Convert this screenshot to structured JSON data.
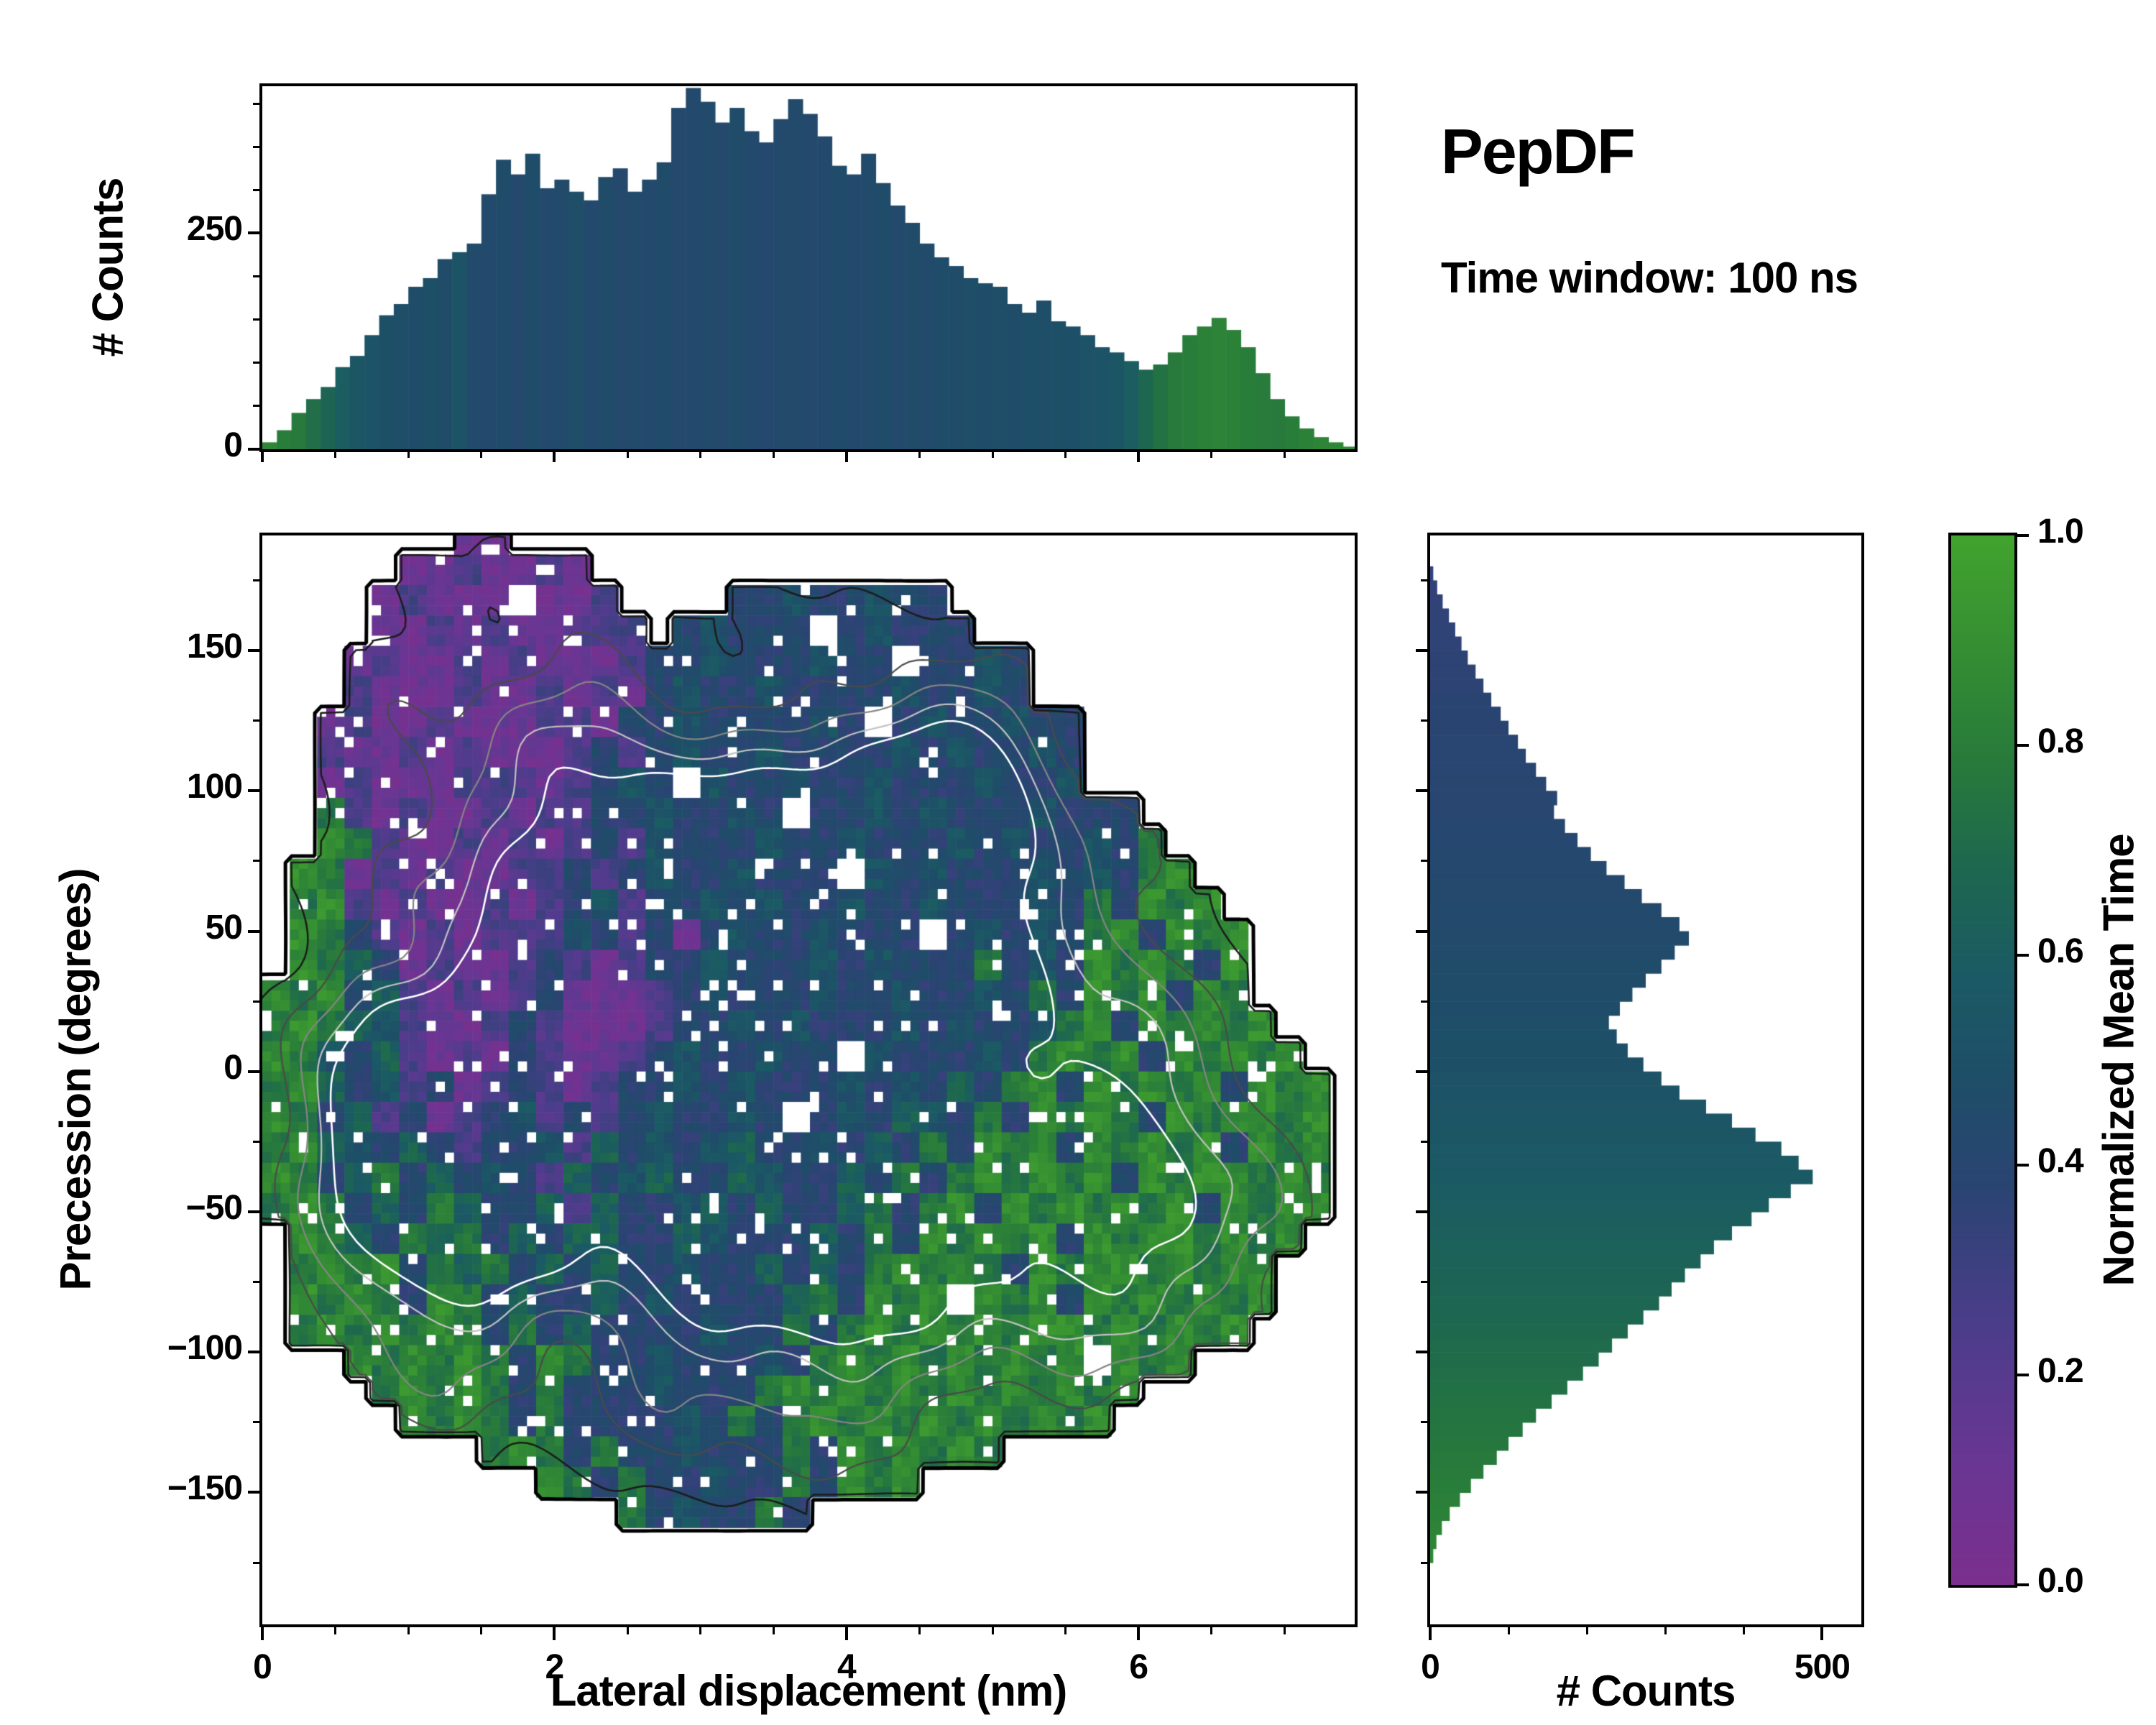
{
  "header": {
    "title": "PepDF",
    "subtitle": "Time window: 100 ns"
  },
  "colors": {
    "background": "#ffffff",
    "axis": "#000000",
    "colormap_stops": [
      [
        0.0,
        "#7b2f8e"
      ],
      [
        0.12,
        "#693693"
      ],
      [
        0.25,
        "#4b3d8a"
      ],
      [
        0.38,
        "#2a4472"
      ],
      [
        0.48,
        "#1e4e68"
      ],
      [
        0.58,
        "#1b5a64"
      ],
      [
        0.68,
        "#1d6750"
      ],
      [
        0.78,
        "#27793c"
      ],
      [
        0.88,
        "#338c33"
      ],
      [
        1.0,
        "#42a32e"
      ]
    ]
  },
  "colorbar": {
    "label": "Normalized Mean Time",
    "ticks": [
      {
        "v": 1.0,
        "label": "1.0"
      },
      {
        "v": 0.8,
        "label": "0.8"
      },
      {
        "v": 0.6,
        "label": "0.6"
      },
      {
        "v": 0.4,
        "label": "0.4"
      },
      {
        "v": 0.2,
        "label": "0.2"
      },
      {
        "v": 0.0,
        "label": "0.0"
      }
    ]
  },
  "chart_data": [
    {
      "id": "top_histogram",
      "type": "bar",
      "ylabel": "# Counts",
      "xlim": [
        0,
        7.48
      ],
      "ylim": [
        0,
        420
      ],
      "y_ticks": [
        {
          "v": 0,
          "label": "0"
        },
        {
          "v": 250,
          "label": "250"
        }
      ],
      "bin_start": 0,
      "bin_width": 0.1,
      "values": [
        8,
        22,
        42,
        58,
        72,
        95,
        108,
        132,
        155,
        168,
        188,
        198,
        220,
        228,
        238,
        295,
        335,
        318,
        342,
        302,
        312,
        298,
        288,
        315,
        325,
        298,
        312,
        332,
        395,
        418,
        402,
        378,
        395,
        368,
        355,
        382,
        405,
        388,
        362,
        328,
        318,
        342,
        308,
        282,
        262,
        238,
        222,
        212,
        198,
        192,
        188,
        168,
        158,
        172,
        148,
        142,
        132,
        118,
        112,
        102,
        92,
        98,
        112,
        132,
        142,
        152,
        138,
        118,
        88,
        58,
        38,
        24,
        14,
        8,
        3
      ],
      "mean_time": [
        0.85,
        0.8,
        0.78,
        0.72,
        0.66,
        0.6,
        0.55,
        0.52,
        0.5,
        0.48,
        0.47,
        0.5,
        0.46,
        0.52,
        0.45,
        0.44,
        0.46,
        0.43,
        0.47,
        0.44,
        0.45,
        0.48,
        0.44,
        0.46,
        0.43,
        0.45,
        0.44,
        0.46,
        0.43,
        0.44,
        0.45,
        0.43,
        0.46,
        0.44,
        0.42,
        0.44,
        0.45,
        0.43,
        0.44,
        0.46,
        0.44,
        0.45,
        0.47,
        0.44,
        0.46,
        0.45,
        0.47,
        0.46,
        0.48,
        0.47,
        0.48,
        0.47,
        0.49,
        0.48,
        0.5,
        0.49,
        0.51,
        0.52,
        0.55,
        0.6,
        0.68,
        0.74,
        0.78,
        0.8,
        0.82,
        0.83,
        0.82,
        0.8,
        0.79,
        0.78,
        0.8,
        0.82,
        0.84,
        0.85,
        0.86
      ]
    },
    {
      "id": "joint_density",
      "type": "heatmap",
      "xlabel": "Lateral displacement (nm)",
      "ylabel": "Precession (degrees)",
      "xlim": [
        0,
        7.48
      ],
      "ylim": [
        -197,
        191
      ],
      "x_ticks": [
        {
          "v": 0,
          "label": "0"
        },
        {
          "v": 2,
          "label": "2"
        },
        {
          "v": 4,
          "label": "4"
        },
        {
          "v": 6,
          "label": "6"
        }
      ],
      "y_ticks": [
        {
          "v": 150,
          "label": "150"
        },
        {
          "v": 100,
          "label": "100"
        },
        {
          "v": 50,
          "label": "50"
        },
        {
          "v": 0,
          "label": "0"
        },
        {
          "v": -50,
          "label": "−50"
        },
        {
          "v": -100,
          "label": "−100"
        },
        {
          "v": -150,
          "label": "−150"
        }
      ],
      "colorbar_quantity": "Normalized Mean Time",
      "grid": {
        "x0": 0,
        "x1": 7.5,
        "y_top": 195,
        "y_bot": -195,
        "cols": 40,
        "rows": 36,
        "value_key": {
          "P": 0.1,
          "p": 0.25,
          "b": 0.4,
          "B": 0.52,
          "t": 0.63,
          "g": 0.76,
          "G": 0.88,
          "w": "hole",
          ".": "empty"
        },
        "rows_chars": [
          ".......PP...............................",
          ".....PPpPPpP............................",
          "....PpPPPwPPp....bbBbbBbb...............",
          "....PPpPpPPppp.bBbbbwbBbbb..............",
          "...PpPPpPpPPPpbbBbbbBbbwbbBb............",
          "...pPPPpPPpPpPbBbbBbbbbBbbBb............",
          "..PpPPpPPPppPbbBbbbbBbwbBbbBbb..........",
          "..pPPpPpPPPpbpbBbbBbbbbBbBbbBb..........",
          "..PpPPPpppPpbBbwBbbBbbBbbbBbbB..........",
          "..gpPpPPpPppbbBbbBbwbbBbBbbbBbbb........",
          "..GgpPPpPpPpbpBbbbBbbBbbbBbBbbBbg.......",
          ".GgPpPpPPppbpbBbbBbbbwBbBbbbBbBbgG......",
          ".gGpPpPPpPpbBpbbBbBbbBbbBbbbBbgbGgG.....",
          ".GgbpPpPpppBbpbPbBbbBbbbwbBbBbgGbGgG....",
          ".GgtbPpPPpbpPpbbBbbbBbBbbbgbBbGgGgbG....",
          "GgGbtpPpPpbPPPpbBbbbBbbBbbBbgbGgGbGg....",
          "gGgtBpPPpbpPPPpbbBbBbbbBbBbbBgGbGgGgG...",
          "GgBbtpPpPbpPPpbBbbBbbwBbbbBbgGgGbGgGgG..",
          "gGtbBpbPpbpPpbbBbBbbbBbBbtbgGbGgGgGbGgG.",
          "GgbtpbPpbBpbpbBbbBbwbBbtBbgbGgGgbGgGGgG.",
          "gGtBbtbpbbBptbBbBtbbBbtbgbGgGbGgGgGbGgG.",
          "GgbtgbtbBbptbBtbbtBbbtbgbgGgGgGbGgGGgGg.",
          "gGgbtbgtbbtptbbBtbtbbtgbgGbGgGgGgGbGgGG.",
          ".GgtbgtgbtbttbbtBbbbtbgbGgGgGbGgGGgGgG..",
          ".gGgGbgtgbtbtbbBbbtbtbgGgGgbGgGGgGgGG...",
          ".GgGgbGgbtbbtbBbbbbtgbGgGwGgGbGgGgGgG...",
          ".gGgGgGgbgbtbbbbBbbgbgGgGgGgGGgGgGgG....",
          "...GgGgGgbGgbbBbbbBbgGgGgGgGgGwGgG......",
          "....gGgGgbgbbbBbbbgGgGgGgGgGgGgG........",
          ".....GgGgbgbbbbBbgbgGgGgGgGgGgG.........",
          "........gGgbgbbBbbbgbGgGgGg.............",
          "..........GgbgbbBbbgbGgG................",
          ".............gbBbbgb....................",
          "........................................",
          "........................................",
          "........................................"
        ]
      },
      "contour_base": 2.6,
      "density_peaks": [
        [
          1.05,
          -8,
          9.5,
          0.45,
          26
        ],
        [
          1.35,
          -38,
          8.5,
          0.5,
          24
        ],
        [
          3.55,
          -35,
          10,
          0.5,
          22
        ],
        [
          4.0,
          -28,
          9,
          0.45,
          24
        ],
        [
          2.45,
          38,
          8.5,
          0.55,
          28
        ],
        [
          3.0,
          62,
          8,
          0.5,
          26
        ],
        [
          3.95,
          63,
          8,
          0.5,
          26
        ],
        [
          4.6,
          103,
          7,
          0.5,
          26
        ],
        [
          2.2,
          -5,
          5,
          0.9,
          45
        ],
        [
          3.2,
          10,
          4.5,
          1.2,
          70
        ],
        [
          4.8,
          -10,
          4,
          0.9,
          50
        ],
        [
          3.6,
          -90,
          4.5,
          0.9,
          35
        ],
        [
          5.6,
          -55,
          4,
          0.8,
          40
        ],
        [
          2.0,
          100,
          4,
          0.8,
          45
        ],
        [
          5.0,
          60,
          4,
          0.7,
          40
        ],
        [
          6.3,
          -40,
          3.5,
          0.6,
          45
        ],
        [
          1.0,
          -80,
          4,
          0.6,
          35
        ]
      ],
      "contour_levels": [
        [
          0.5,
          "#000000",
          5
        ],
        [
          3.4,
          "#1c1c1c",
          2.5
        ],
        [
          5.0,
          "#4a4a4a",
          2.2
        ],
        [
          6.4,
          "#858585",
          2.2
        ],
        [
          7.8,
          "#c2c2c2",
          2.2
        ],
        [
          9.2,
          "#ffffff",
          2.6
        ]
      ]
    },
    {
      "id": "right_histogram",
      "type": "bar",
      "orientation": "horizontal",
      "xlabel": "# Counts",
      "xlim": [
        0,
        550
      ],
      "x_ticks": [
        {
          "v": 0,
          "label": "0"
        },
        {
          "v": 500,
          "label": "500"
        }
      ],
      "bin_start": -180,
      "bin_width": 5,
      "values": [
        0,
        4,
        8,
        15,
        25,
        38,
        52,
        68,
        85,
        100,
        118,
        135,
        155,
        175,
        195,
        215,
        232,
        252,
        272,
        292,
        308,
        325,
        345,
        362,
        385,
        410,
        432,
        460,
        488,
        470,
        448,
        415,
        385,
        352,
        318,
        295,
        272,
        252,
        238,
        228,
        242,
        258,
        275,
        295,
        312,
        330,
        318,
        295,
        270,
        248,
        225,
        205,
        188,
        172,
        158,
        162,
        148,
        135,
        122,
        112,
        100,
        90,
        78,
        68,
        58,
        48,
        40,
        32,
        24,
        16,
        9,
        4
      ],
      "mean_time": [
        0.86,
        0.85,
        0.84,
        0.83,
        0.82,
        0.81,
        0.8,
        0.79,
        0.78,
        0.77,
        0.76,
        0.75,
        0.74,
        0.73,
        0.72,
        0.71,
        0.7,
        0.69,
        0.68,
        0.67,
        0.66,
        0.65,
        0.64,
        0.63,
        0.62,
        0.61,
        0.6,
        0.59,
        0.58,
        0.57,
        0.56,
        0.55,
        0.54,
        0.53,
        0.52,
        0.51,
        0.5,
        0.5,
        0.49,
        0.48,
        0.47,
        0.47,
        0.46,
        0.46,
        0.45,
        0.45,
        0.44,
        0.44,
        0.43,
        0.43,
        0.42,
        0.42,
        0.41,
        0.41,
        0.4,
        0.4,
        0.4,
        0.39,
        0.39,
        0.39,
        0.38,
        0.38,
        0.38,
        0.37,
        0.37,
        0.37,
        0.36,
        0.36,
        0.36,
        0.35,
        0.35,
        0.35
      ]
    }
  ]
}
